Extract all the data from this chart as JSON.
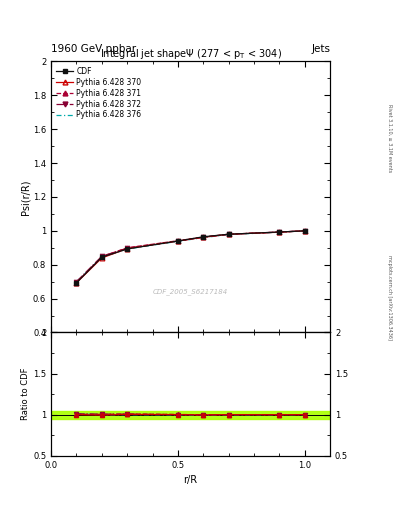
{
  "title_top": "1960 GeV ppbar",
  "title_top_right": "Jets",
  "plot_title": "Integral jet shapeΨ (277 < pₜ < 304)",
  "xlabel": "r/R",
  "ylabel_main": "Psi(r/R)",
  "ylabel_ratio": "Ratio to CDF",
  "watermark": "CDF_2005_S6217184",
  "right_label_top": "Rivet 3.1.10, ≥ 3.1M events",
  "right_label_bottom": "mcplots.cern.ch [arXiv:1306.3436]",
  "cdf_y": [
    0.693,
    0.845,
    0.893,
    0.94,
    0.965,
    0.98,
    0.993,
    1.0
  ],
  "cdf_x": [
    0.1,
    0.2,
    0.3,
    0.5,
    0.6,
    0.7,
    0.9,
    1.0
  ],
  "py370_x": [
    0.1,
    0.2,
    0.3,
    0.5,
    0.6,
    0.7,
    0.9,
    1.0
  ],
  "py370_y": [
    0.693,
    0.84,
    0.895,
    0.94,
    0.962,
    0.98,
    0.992,
    1.0
  ],
  "py371_x": [
    0.1,
    0.2,
    0.3,
    0.5,
    0.6,
    0.7,
    0.9,
    1.0
  ],
  "py371_y": [
    0.695,
    0.848,
    0.9,
    0.942,
    0.963,
    0.98,
    0.993,
    1.0
  ],
  "py372_x": [
    0.1,
    0.2,
    0.3,
    0.5,
    0.6,
    0.7,
    0.9,
    1.0
  ],
  "py372_y": [
    0.7,
    0.85,
    0.898,
    0.94,
    0.962,
    0.98,
    0.993,
    1.0
  ],
  "py376_x": [
    0.1,
    0.2,
    0.3,
    0.5,
    0.6,
    0.7,
    0.9,
    1.0
  ],
  "py376_y": [
    0.7,
    0.843,
    0.893,
    0.938,
    0.96,
    0.978,
    0.992,
    1.0
  ],
  "ylim_main": [
    0.4,
    2.0
  ],
  "ylim_ratio": [
    0.5,
    2.0
  ],
  "xlim": [
    0.0,
    1.1
  ],
  "cdf_color": "#111111",
  "py370_color": "#cc0000",
  "py371_color": "#aa0033",
  "py372_color": "#880033",
  "py376_color": "#00aaaa",
  "ratio_band_color": "#aaff00",
  "bg_color": "#ffffff"
}
